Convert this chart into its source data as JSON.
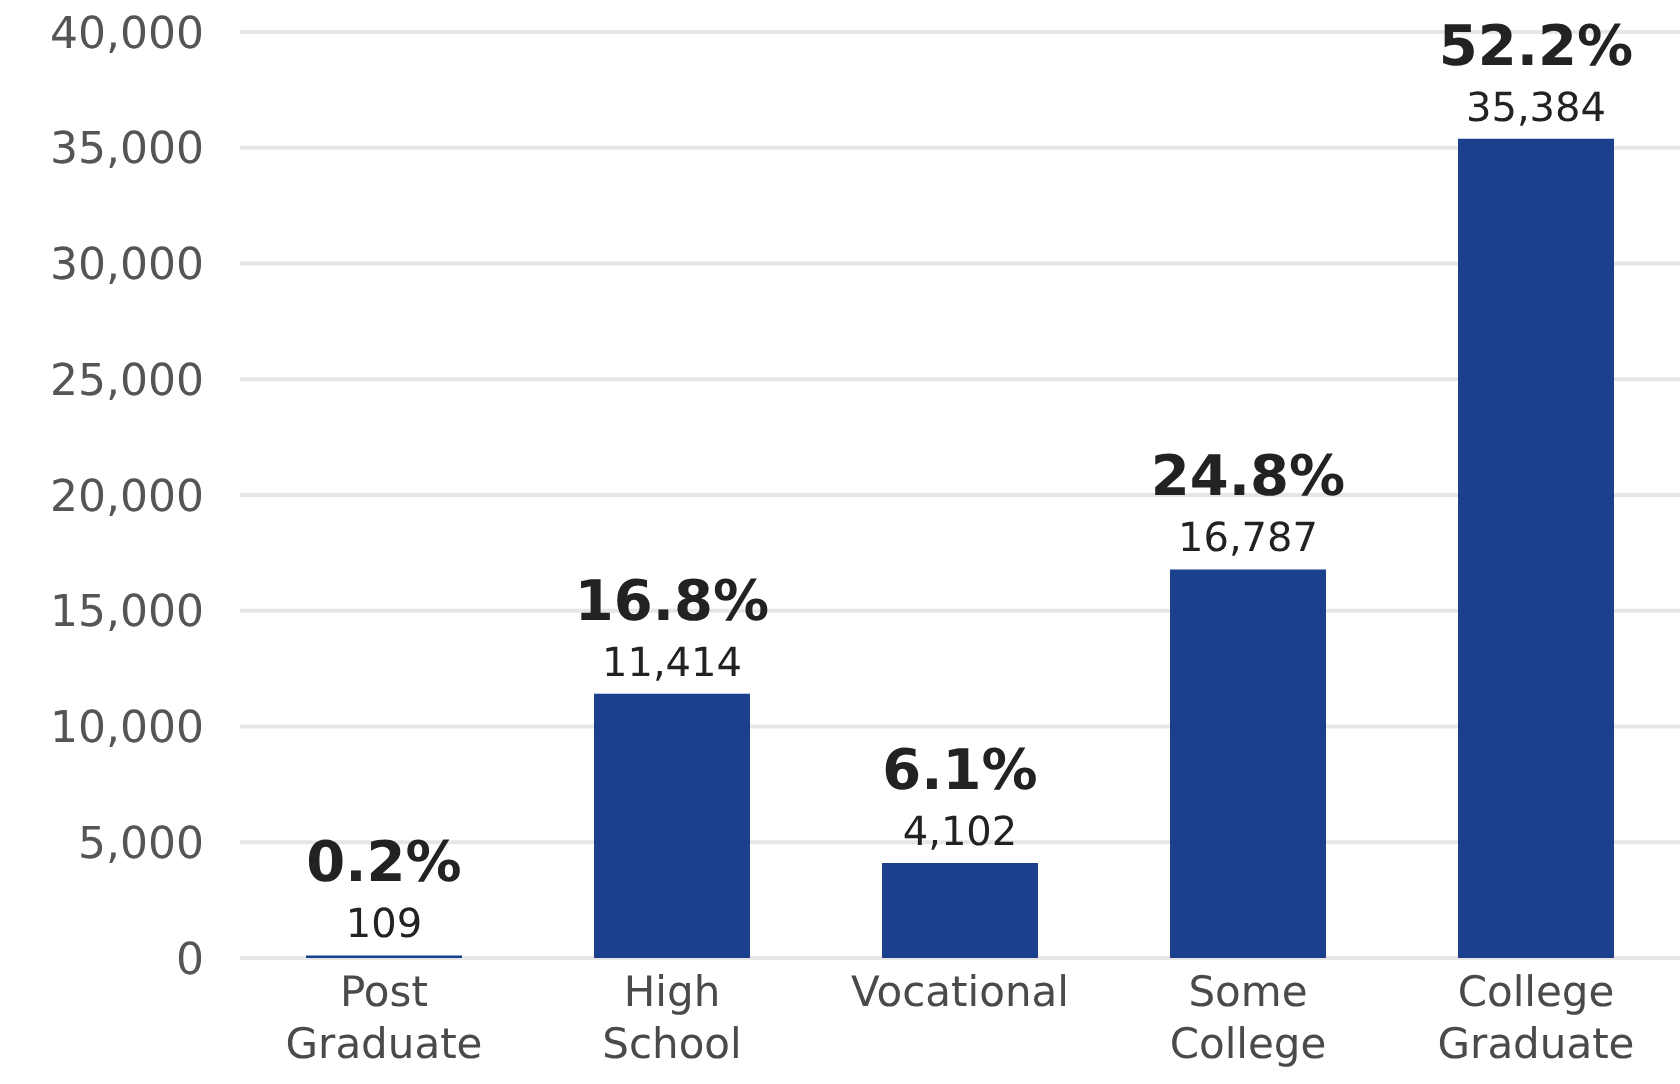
{
  "chart_data": {
    "type": "bar",
    "categories": [
      "Post Graduate",
      "High School",
      "Vocational",
      "Some College",
      "College Graduate"
    ],
    "values": [
      109,
      11414,
      4102,
      16787,
      35384
    ],
    "value_labels": [
      "109",
      "11,414",
      "4,102",
      "16,787",
      "35,384"
    ],
    "color": "#1a408e",
    "ylim": [
      0,
      40000
    ],
    "yticks": [
      0,
      {
        "value": 5000,
        "label": "5,000"
      },
      {
        "value": 10000,
        "label": "10,000"
      },
      {
        "value": 15000,
        "label": "15,000"
      },
      {
        "value": 20000,
        "label": "20,000"
      },
      {
        "value": 25000,
        "label": "25,000"
      },
      {
        "value": 30000,
        "label": "30,000"
      },
      {
        "value": 35000,
        "label": "35,000"
      },
      {
        "value": 40000,
        "label": "40,000"
      }
    ],
    "grid": "y",
    "annotations": [
      {
        "text": "0.2%",
        "x": "Post Graduate",
        "y": 109
      },
      {
        "text": "16.8%",
        "x": "High School",
        "y": 11414
      },
      {
        "text": "6.1%",
        "x": "Vocational",
        "y": 4102
      },
      {
        "text": "24.8%",
        "x": "Some College",
        "y": 16787
      },
      {
        "text": "52.2%",
        "x": "College Graduate",
        "y": 35384
      }
    ]
  }
}
